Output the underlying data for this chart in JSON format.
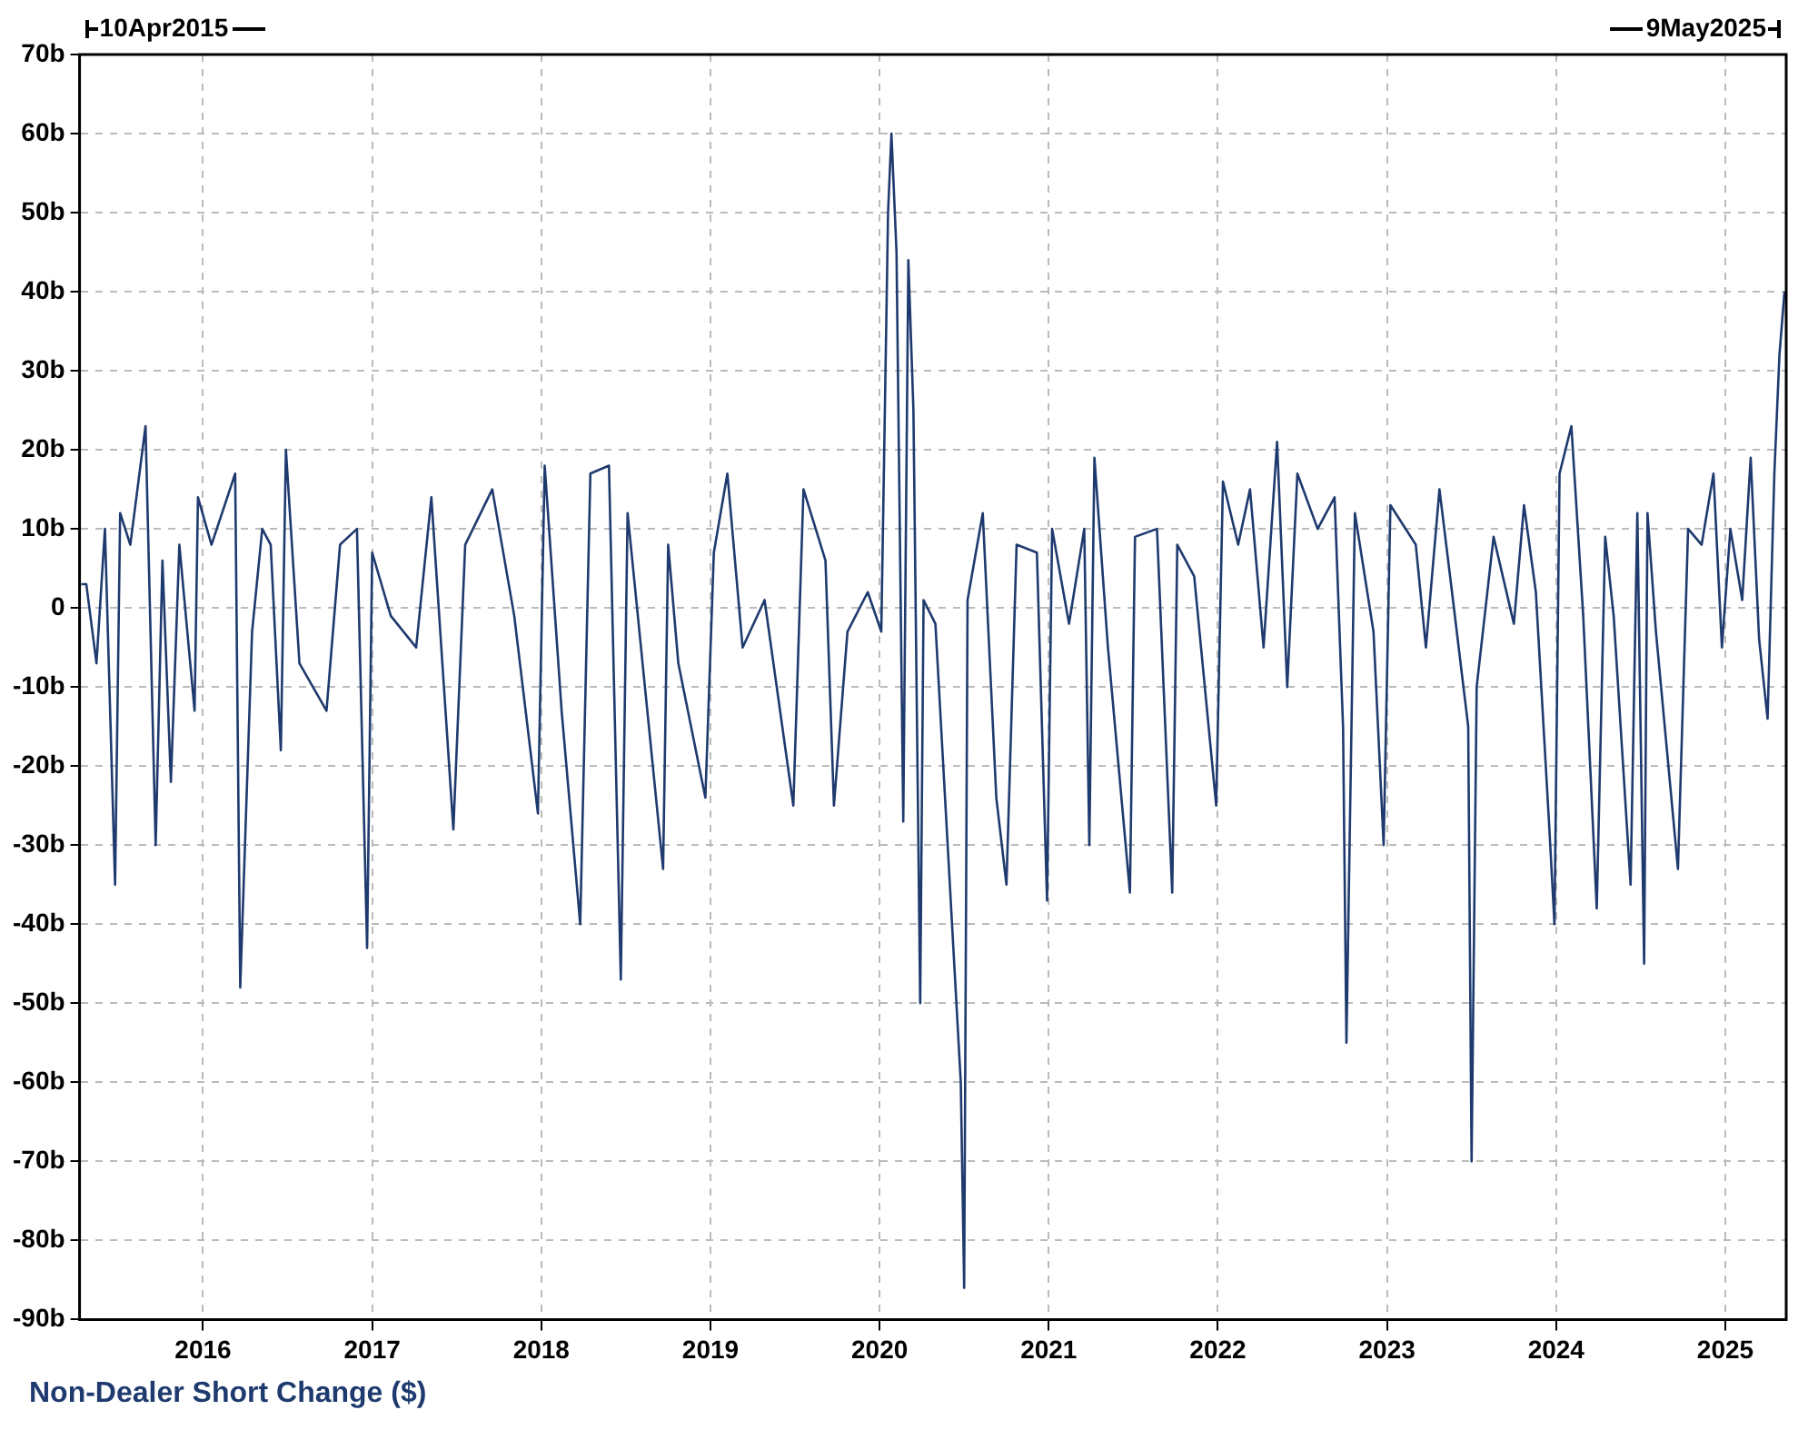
{
  "chart_data": {
    "type": "line",
    "annotations": [
      "10Apr2015",
      "9May2025"
    ],
    "x": [
      2015.28,
      2015.31,
      2015.37,
      2015.42,
      2015.48,
      2015.51,
      2015.57,
      2015.66,
      2015.72,
      2015.76,
      2015.81,
      2015.86,
      2015.95,
      2015.97,
      2016.05,
      2016.19,
      2016.22,
      2016.29,
      2016.35,
      2016.4,
      2016.46,
      2016.49,
      2016.57,
      2016.73,
      2016.81,
      2016.91,
      2016.97,
      2017.0,
      2017.11,
      2017.26,
      2017.35,
      2017.48,
      2017.55,
      2017.71,
      2017.84,
      2017.98,
      2018.02,
      2018.12,
      2018.23,
      2018.29,
      2018.4,
      2018.47,
      2018.51,
      2018.72,
      2018.75,
      2018.81,
      2018.97,
      2019.02,
      2019.1,
      2019.19,
      2019.32,
      2019.49,
      2019.55,
      2019.68,
      2019.73,
      2019.81,
      2019.93,
      2020.01,
      2020.05,
      2020.07,
      2020.1,
      2020.14,
      2020.17,
      2020.2,
      2020.24,
      2020.26,
      2020.33,
      2020.48,
      2020.5,
      2020.52,
      2020.61,
      2020.69,
      2020.75,
      2020.81,
      2020.93,
      2020.99,
      2021.02,
      2021.12,
      2021.21,
      2021.24,
      2021.27,
      2021.35,
      2021.48,
      2021.51,
      2021.64,
      2021.73,
      2021.76,
      2021.86,
      2021.99,
      2022.03,
      2022.12,
      2022.19,
      2022.27,
      2022.35,
      2022.41,
      2022.47,
      2022.59,
      2022.69,
      2022.74,
      2022.76,
      2022.81,
      2022.92,
      2022.98,
      2023.02,
      2023.17,
      2023.23,
      2023.31,
      2023.39,
      2023.48,
      2023.5,
      2023.53,
      2023.63,
      2023.75,
      2023.81,
      2023.88,
      2023.96,
      2023.99,
      2024.02,
      2024.09,
      2024.16,
      2024.24,
      2024.29,
      2024.34,
      2024.44,
      2024.48,
      2024.52,
      2024.54,
      2024.59,
      2024.72,
      2024.78,
      2024.86,
      2024.93,
      2024.98,
      2025.03,
      2025.1,
      2025.15,
      2025.2,
      2025.25,
      2025.29,
      2025.32,
      2025.35
    ],
    "series": [
      {
        "name": "Non-Dealer Short Change ($)",
        "color": "#1f3a6e",
        "values": [
          3,
          3,
          -7,
          10,
          -35,
          12,
          8,
          23,
          -30,
          6,
          -22,
          8,
          -13,
          14,
          8,
          17,
          -48,
          -3,
          10,
          8,
          -18,
          20,
          -7,
          -13,
          8,
          10,
          -43,
          7,
          -1,
          -5,
          14,
          -28,
          8,
          15,
          -1,
          -26,
          18,
          -13,
          -40,
          17,
          18,
          -47,
          12,
          -33,
          8,
          -7,
          -24,
          7,
          17,
          -5,
          1,
          -25,
          15,
          6,
          -25,
          -3,
          2,
          -3,
          50,
          60,
          45,
          -27,
          44,
          25,
          -50,
          1,
          -2,
          -60,
          -86,
          1,
          12,
          -24,
          -35,
          8,
          7,
          -37,
          10,
          -2,
          10,
          -30,
          19,
          -5,
          -36,
          9,
          10,
          -36,
          8,
          4,
          -25,
          16,
          8,
          15,
          -5,
          21,
          -10,
          17,
          10,
          14,
          -15,
          -55,
          12,
          -3,
          -30,
          13,
          8,
          -5,
          15,
          1,
          -15,
          -70,
          -10,
          9,
          -2,
          13,
          2,
          -28,
          -40,
          17,
          23,
          -1,
          -38,
          9,
          -1,
          -35,
          12,
          -45,
          12,
          -3,
          -33,
          10,
          8,
          17,
          -5,
          10,
          1,
          19,
          -4,
          -14,
          17,
          32,
          40
        ]
      }
    ],
    "xlim": [
      2015.27,
      2025.36
    ],
    "xticks": [
      2016,
      2017,
      2018,
      2019,
      2020,
      2021,
      2022,
      2023,
      2024,
      2025
    ],
    "ylim": [
      -90,
      70
    ],
    "yticks": [
      {
        "value": -90,
        "label": "-90b"
      },
      {
        "value": -80,
        "label": "-80b"
      },
      {
        "value": -70,
        "label": "-70b"
      },
      {
        "value": -60,
        "label": "-60b"
      },
      {
        "value": -50,
        "label": "-50b"
      },
      {
        "value": -40,
        "label": "-40b"
      },
      {
        "value": -30,
        "label": "-30b"
      },
      {
        "value": -20,
        "label": "-20b"
      },
      {
        "value": -10,
        "label": "-10b"
      },
      {
        "value": 0,
        "label": "0"
      },
      {
        "value": 10,
        "label": "10b"
      },
      {
        "value": 20,
        "label": "20b"
      },
      {
        "value": 30,
        "label": "30b"
      },
      {
        "value": 40,
        "label": "40b"
      },
      {
        "value": 50,
        "label": "50b"
      },
      {
        "value": 60,
        "label": "60b"
      },
      {
        "value": 70,
        "label": "70b"
      }
    ],
    "grid": true,
    "legend": "bottom left",
    "marker": "none",
    "line_style": "solid"
  }
}
